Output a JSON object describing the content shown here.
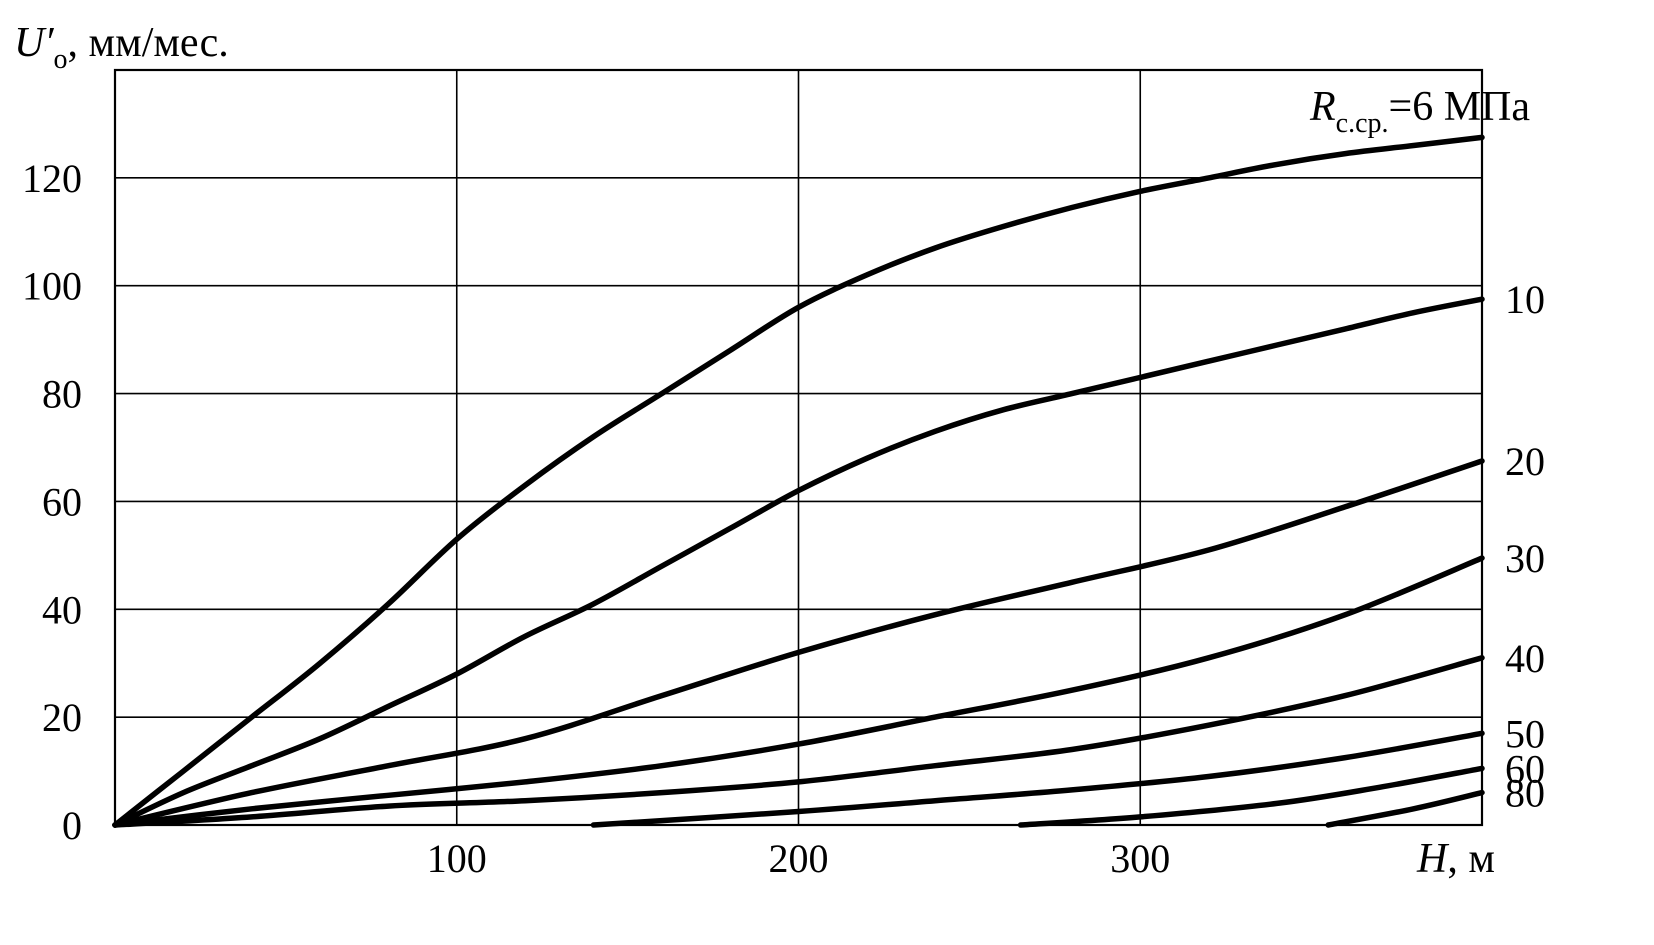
{
  "chart_data": {
    "type": "line",
    "ylabel": "U′о, мм/мес.",
    "ylabel_symbol": "U′",
    "ylabel_sub": "о",
    "ylabel_unit": ", мм/мес.",
    "xlabel": "H, м",
    "xlabel_symbol": "H",
    "xlabel_unit": ", м",
    "xlim": [
      0,
      400
    ],
    "ylim": [
      0,
      140
    ],
    "x_ticks": [
      100,
      200,
      300
    ],
    "y_ticks": [
      0,
      20,
      40,
      60,
      80,
      100,
      120
    ],
    "grid": true,
    "series_label_prefix_symbol": "R",
    "series_label_prefix_sub": "с.ср.",
    "series_label_prefix_text": "=6 МПа",
    "series": [
      {
        "name": "6",
        "x": [
          0,
          20,
          40,
          60,
          80,
          100,
          120,
          140,
          160,
          180,
          200,
          220,
          240,
          260,
          280,
          300,
          320,
          340,
          360,
          380,
          400
        ],
        "y": [
          0,
          10,
          20,
          30,
          41,
          53,
          63,
          72,
          80,
          88,
          96,
          102,
          107,
          111,
          114.5,
          117.5,
          120,
          122.5,
          124.5,
          126,
          127.5
        ]
      },
      {
        "name": "10",
        "x": [
          0,
          20,
          40,
          60,
          80,
          100,
          120,
          140,
          160,
          180,
          200,
          220,
          240,
          260,
          280,
          300,
          320,
          340,
          360,
          380,
          400
        ],
        "y": [
          0,
          6,
          11,
          16,
          22,
          28,
          35,
          41,
          48,
          55,
          62,
          68,
          73,
          77,
          80,
          83,
          86,
          89,
          92,
          95,
          97.5
        ]
      },
      {
        "name": "20",
        "x": [
          0,
          40,
          80,
          120,
          160,
          200,
          240,
          280,
          320,
          360,
          400
        ],
        "y": [
          0,
          6,
          11,
          16,
          24,
          32,
          39,
          45,
          51,
          59,
          67.5
        ]
      },
      {
        "name": "30",
        "x": [
          0,
          40,
          80,
          120,
          160,
          200,
          240,
          280,
          320,
          360,
          400
        ],
        "y": [
          0,
          3,
          5.5,
          8,
          11,
          15,
          20,
          25,
          31,
          39,
          49.5
        ]
      },
      {
        "name": "40",
        "x": [
          0,
          40,
          80,
          120,
          160,
          200,
          240,
          280,
          320,
          360,
          400
        ],
        "y": [
          0,
          1.5,
          3.5,
          4.5,
          6,
          8,
          11,
          14,
          18.5,
          24,
          31
        ]
      },
      {
        "name": "50",
        "x": [
          140,
          200,
          240,
          280,
          320,
          360,
          400
        ],
        "y": [
          0,
          2.5,
          4.5,
          6.5,
          9,
          12.5,
          17
        ]
      },
      {
        "name": "60",
        "x": [
          265,
          300,
          340,
          370,
          400
        ],
        "y": [
          0,
          1.5,
          4,
          7,
          10.5
        ]
      },
      {
        "name": "80",
        "x": [
          355,
          380,
          400
        ],
        "y": [
          0,
          3,
          6
        ]
      }
    ]
  }
}
